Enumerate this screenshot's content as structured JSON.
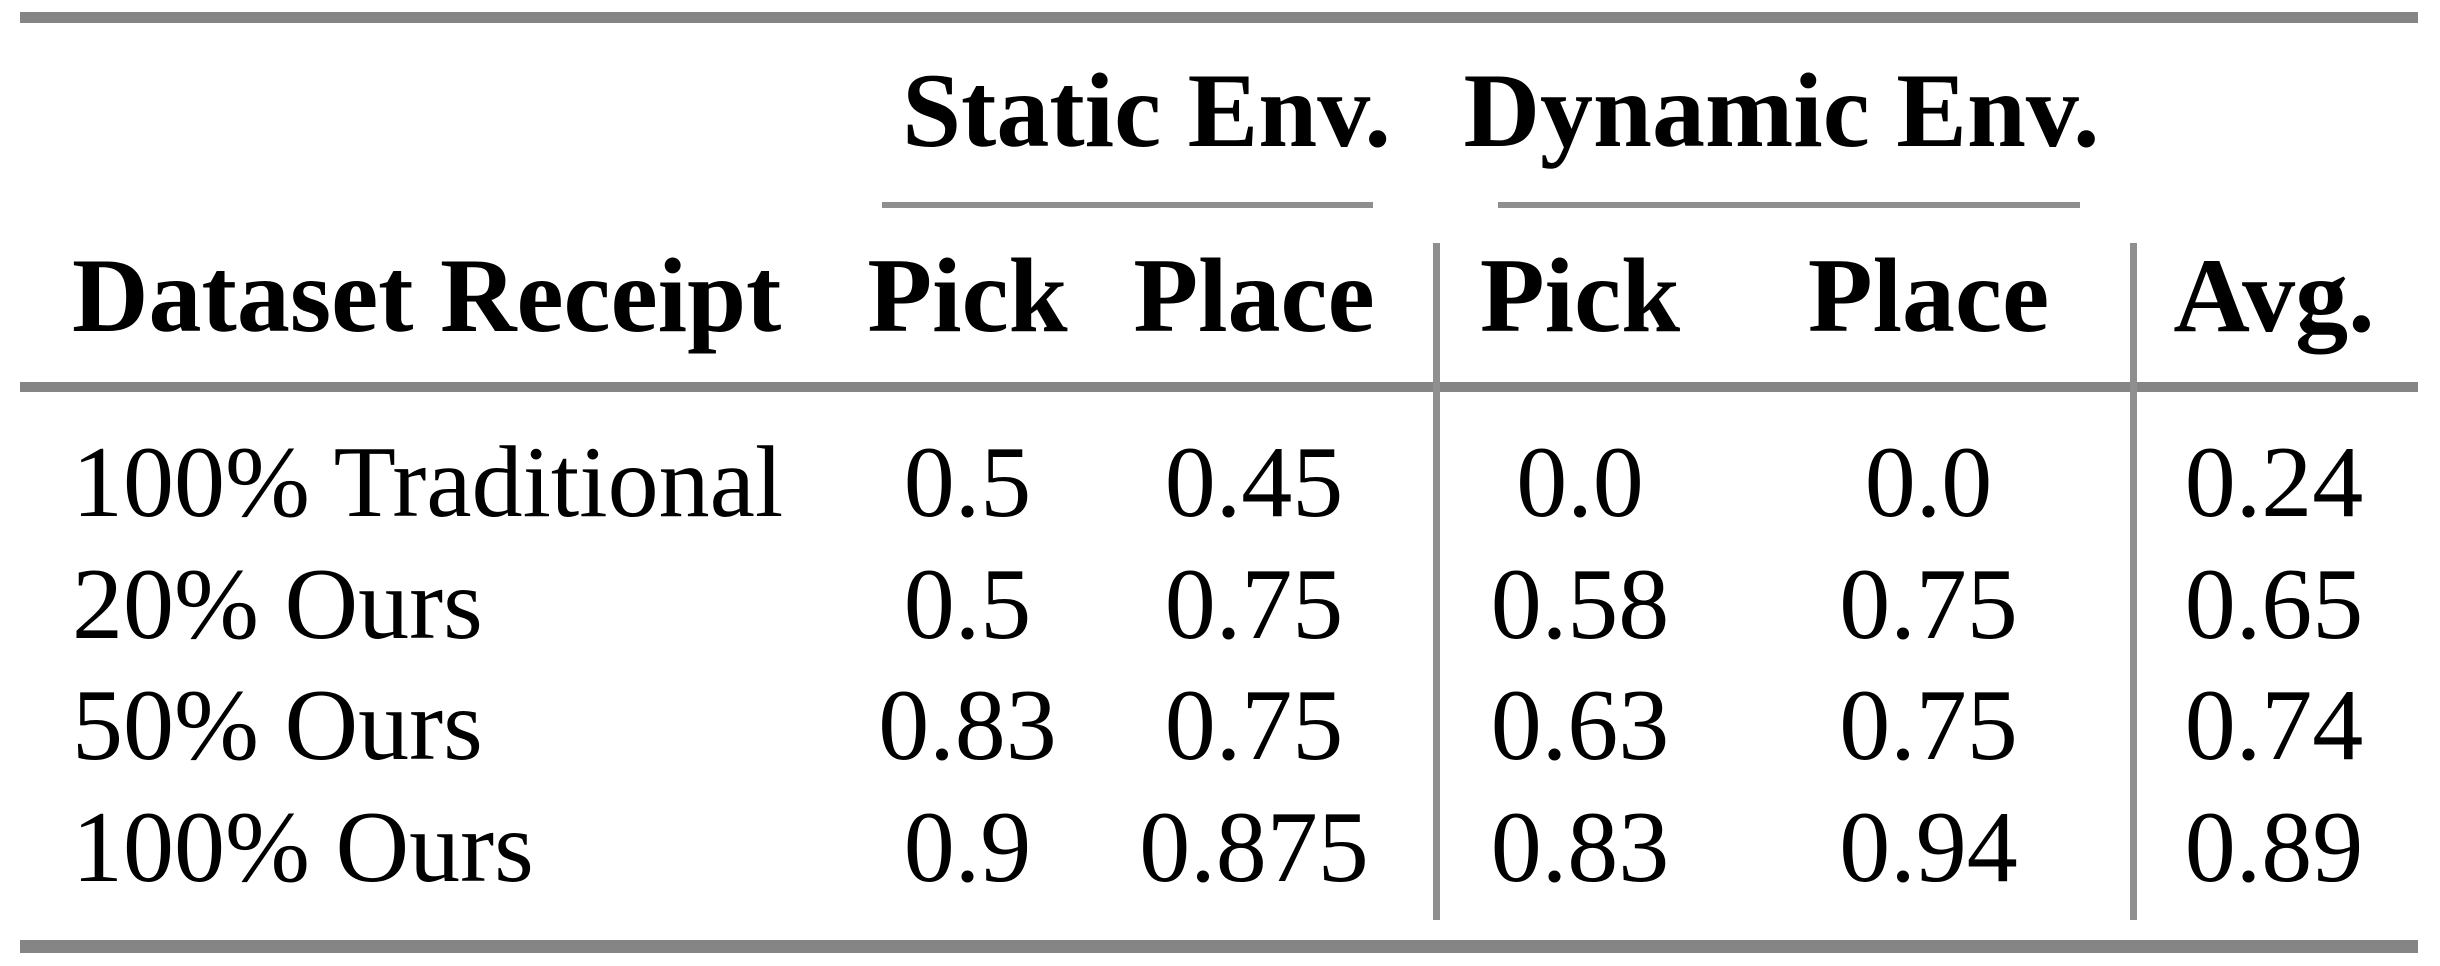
{
  "table": {
    "col_groups": [
      {
        "label": "Static Env."
      },
      {
        "label": "Dynamic Env."
      }
    ],
    "headers": {
      "row_label": "Dataset Receipt",
      "static_pick": "Pick",
      "static_place": "Place",
      "dynamic_pick": "Pick",
      "dynamic_place": "Place",
      "avg": "Avg."
    },
    "rows": [
      {
        "label": "100% Traditional",
        "static_pick": "0.5",
        "static_place": "0.45",
        "dynamic_pick": "0.0",
        "dynamic_place": "0.0",
        "avg": "0.24"
      },
      {
        "label": "20% Ours",
        "static_pick": "0.5",
        "static_place": "0.75",
        "dynamic_pick": "0.58",
        "dynamic_place": "0.75",
        "avg": "0.65"
      },
      {
        "label": "50% Ours",
        "static_pick": "0.83",
        "static_place": "0.75",
        "dynamic_pick": "0.63",
        "dynamic_place": "0.75",
        "avg": "0.74"
      },
      {
        "label": "100% Ours",
        "static_pick": "0.9",
        "static_place": "0.875",
        "dynamic_pick": "0.83",
        "dynamic_place": "0.94",
        "avg": "0.89"
      }
    ],
    "colors": {
      "rule_thick": "#858585",
      "rule_thin": "#8f8f8f",
      "text": "#000000",
      "background": "#ffffff"
    }
  },
  "chart_data": {
    "type": "table",
    "columns": [
      "Dataset Receipt",
      "Static Env. Pick",
      "Static Env. Place",
      "Dynamic Env. Pick",
      "Dynamic Env. Place",
      "Avg."
    ],
    "rows": [
      [
        "100% Traditional",
        0.5,
        0.45,
        0.0,
        0.0,
        0.24
      ],
      [
        "20% Ours",
        0.5,
        0.75,
        0.58,
        0.75,
        0.65
      ],
      [
        "50% Ours",
        0.83,
        0.75,
        0.63,
        0.75,
        0.74
      ],
      [
        "100% Ours",
        0.9,
        0.875,
        0.83,
        0.94,
        0.89
      ]
    ],
    "layout": {
      "column_groups": [
        {
          "label": "Static Env.",
          "spans": [
            "Pick",
            "Place"
          ]
        },
        {
          "label": "Dynamic Env.",
          "spans": [
            "Pick",
            "Place"
          ]
        }
      ],
      "grid": "booktabs-rules-with-partial-underlines-and-two-vertical-dividers"
    }
  }
}
